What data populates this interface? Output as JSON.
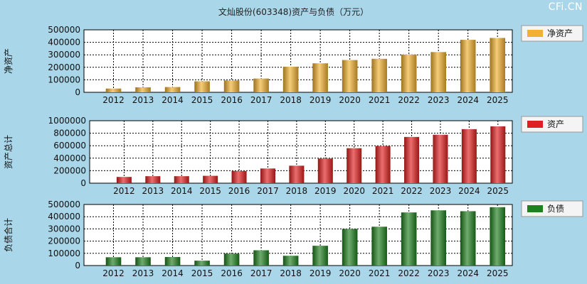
{
  "title": "文灿股份(603348)资产与负债（万元）",
  "watermark": "CFi.CN",
  "colors": {
    "background": "#a9d6e8",
    "plot_bg": "#ffffff",
    "gold": "#f0b030",
    "red": "#e02020",
    "green": "#208020"
  },
  "chart_data": [
    {
      "type": "bar",
      "ylabel": "净资产",
      "legend": "净资产",
      "color": "#f0b030",
      "ylim": [
        0,
        500000
      ],
      "yticks": [
        0,
        100000,
        200000,
        300000,
        400000,
        500000
      ],
      "categories": [
        "2012",
        "2013",
        "2014",
        "2015",
        "2016",
        "2017",
        "2018",
        "2019",
        "2020",
        "2021",
        "2022",
        "2023",
        "2024",
        "2025"
      ],
      "values": [
        30000,
        40000,
        42000,
        88000,
        95000,
        110000,
        205000,
        232000,
        258000,
        268000,
        302000,
        322000,
        420000,
        435000
      ]
    },
    {
      "type": "bar",
      "ylabel": "资产总计",
      "legend": "资产",
      "color": "#e02020",
      "ylim": [
        0,
        1000000
      ],
      "yticks": [
        0,
        200000,
        400000,
        600000,
        800000,
        1000000
      ],
      "categories": [
        "2012",
        "2013",
        "2014",
        "2015",
        "2016",
        "2017",
        "2018",
        "2019",
        "2020",
        "2021",
        "2022",
        "2023",
        "2024",
        "2025"
      ],
      "values": [
        100000,
        112000,
        112000,
        118000,
        195000,
        235000,
        280000,
        395000,
        560000,
        595000,
        740000,
        775000,
        865000,
        910000
      ]
    },
    {
      "type": "bar",
      "ylabel": "负债合计",
      "legend": "负债",
      "color": "#208020",
      "ylim": [
        0,
        500000
      ],
      "yticks": [
        0,
        100000,
        200000,
        300000,
        400000,
        500000
      ],
      "categories": [
        "2012",
        "2013",
        "2014",
        "2015",
        "2016",
        "2017",
        "2018",
        "2019",
        "2020",
        "2021",
        "2022",
        "2023",
        "2024",
        "2025"
      ],
      "values": [
        68000,
        68000,
        70000,
        40000,
        98000,
        125000,
        80000,
        162000,
        300000,
        318000,
        435000,
        452000,
        445000,
        478000
      ]
    }
  ]
}
